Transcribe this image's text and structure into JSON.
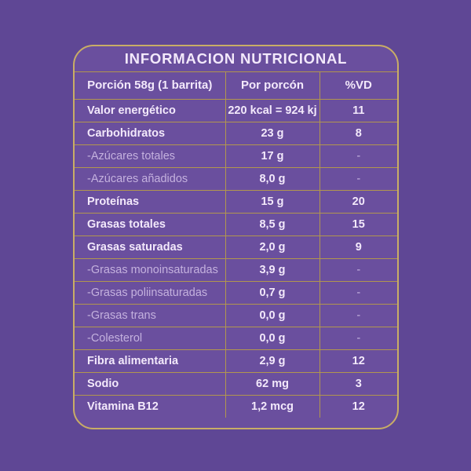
{
  "title": "INFORMACION NUTRICIONAL",
  "table": {
    "headers": [
      "Porción 58g (1 barrita)",
      "Por porcón",
      "%VD"
    ],
    "rows": [
      {
        "label": "Valor energético",
        "value": "220 kcal = 924 kj",
        "vd": "11",
        "sub": false
      },
      {
        "label": "Carbohidratos",
        "value": "23 g",
        "vd": "8",
        "sub": false
      },
      {
        "label": "-Azúcares totales",
        "value": "17 g",
        "vd": "-",
        "sub": true
      },
      {
        "label": "-Azúcares añadidos",
        "value": "8,0 g",
        "vd": "-",
        "sub": true
      },
      {
        "label": "Proteínas",
        "value": "15 g",
        "vd": "20",
        "sub": false
      },
      {
        "label": "Grasas totales",
        "value": "8,5 g",
        "vd": "15",
        "sub": false
      },
      {
        "label": "Grasas saturadas",
        "value": "2,0 g",
        "vd": "9",
        "sub": false
      },
      {
        "label": "-Grasas monoinsaturadas",
        "value": "3,9 g",
        "vd": "-",
        "sub": true
      },
      {
        "label": "-Grasas poliinsaturadas",
        "value": "0,7 g",
        "vd": "-",
        "sub": true
      },
      {
        "label": "-Grasas trans",
        "value": "0,0 g",
        "vd": "-",
        "sub": true
      },
      {
        "label": "-Colesterol",
        "value": "0,0 g",
        "vd": "-",
        "sub": true
      },
      {
        "label": "Fibra alimentaria",
        "value": "2,9 g",
        "vd": "12",
        "sub": false
      },
      {
        "label": "Sodio",
        "value": "62 mg",
        "vd": "3",
        "sub": false
      },
      {
        "label": "Vitamina B12",
        "value": "1,2 mcg",
        "vd": "12",
        "sub": false
      }
    ]
  },
  "colors": {
    "page-bg": "#5f4795",
    "panel-bg": "#6a4f9e",
    "grid-gold": "#b2964e",
    "frame-gold": "#c9ad66",
    "text-bright": "#f3e9fb",
    "text-dim": "#c4b1de"
  }
}
